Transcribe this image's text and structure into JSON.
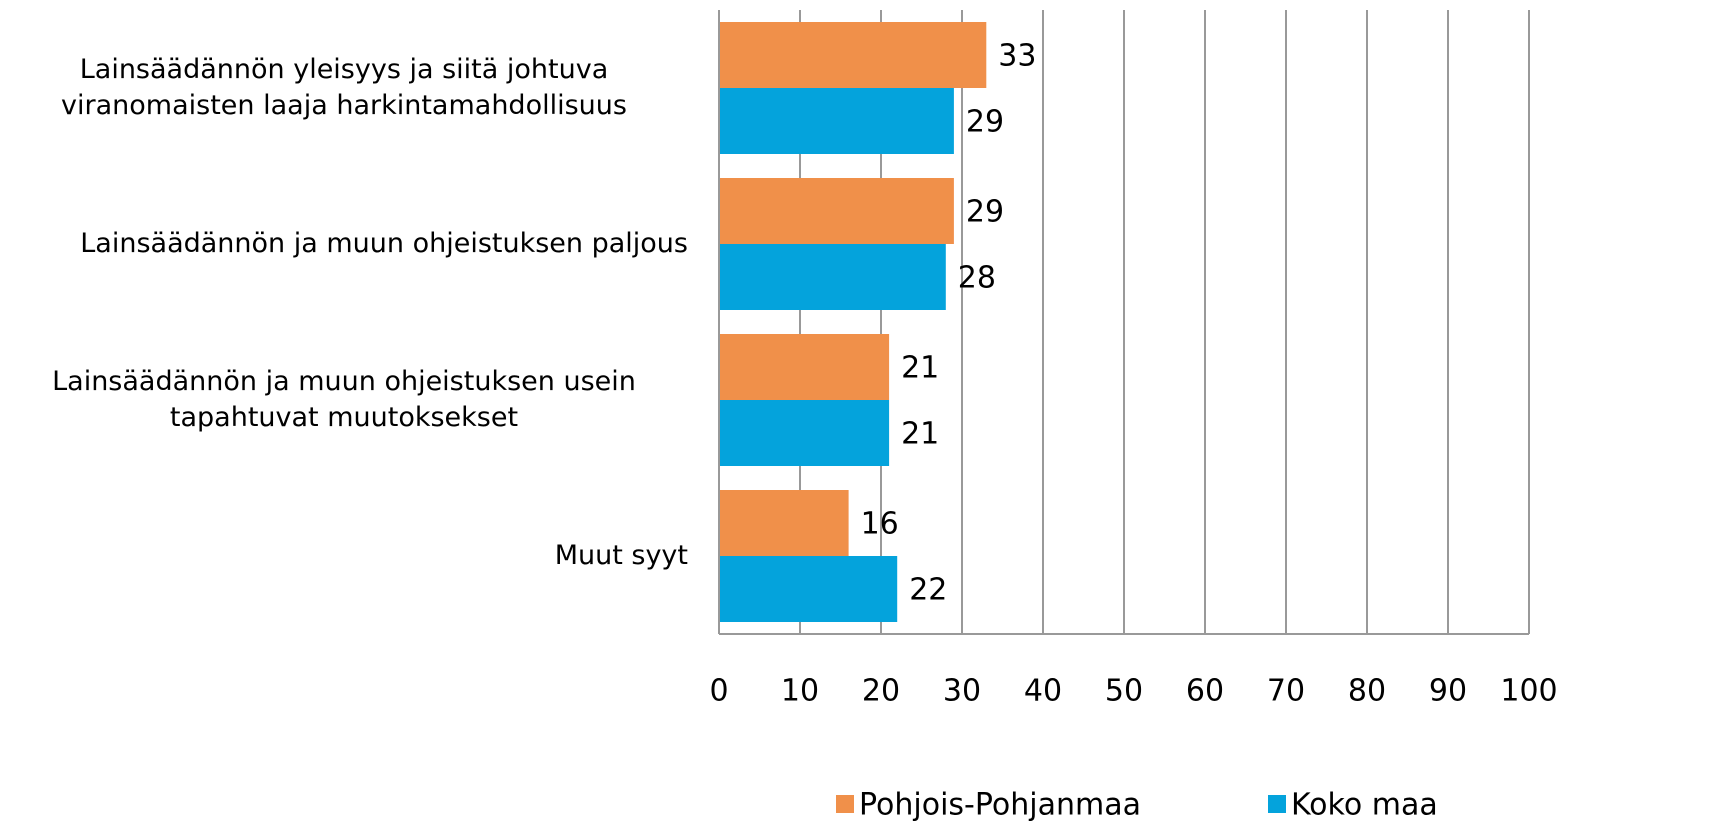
{
  "chart_data": {
    "type": "bar",
    "orientation": "horizontal",
    "categories": [
      "Lainsäädännön yleisyys ja siitä johtuva viranomaisten laaja harkintamahdollisuus",
      "Lainsäädännön ja muun ohjeistuksen paljous",
      "Lainsäädännön ja muun ohjeistuksen usein tapahtuvat muutoksekset",
      "Muut syyt"
    ],
    "series": [
      {
        "name": "Pohjois-Pohjanmaa",
        "color": "#f0904a",
        "values": [
          33,
          29,
          21,
          16
        ]
      },
      {
        "name": "Koko maa",
        "color": "#04a3dc",
        "values": [
          29,
          28,
          21,
          22
        ]
      }
    ],
    "xlim": [
      0,
      100
    ],
    "xticks": [
      0,
      10,
      20,
      30,
      40,
      50,
      60,
      70,
      80,
      90,
      100
    ],
    "grid": true,
    "legend": "bottom"
  }
}
